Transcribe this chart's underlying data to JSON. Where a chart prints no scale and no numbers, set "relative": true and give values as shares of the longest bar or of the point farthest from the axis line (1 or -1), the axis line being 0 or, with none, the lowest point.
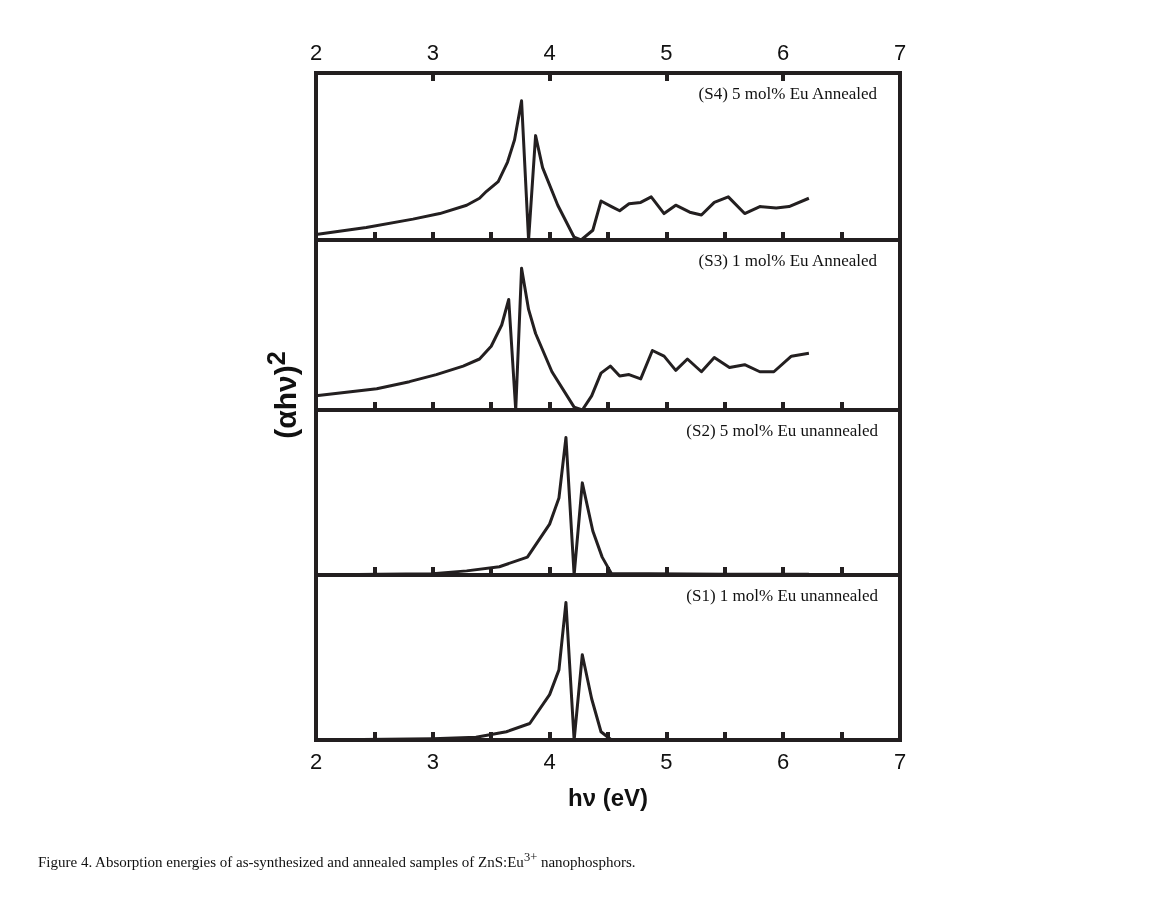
{
  "chart_data": [
    {
      "type": "line",
      "relative": true,
      "xlim": [
        2,
        7
      ],
      "xticks": [
        2,
        {
          "value": 2.5,
          "label": null
        },
        3,
        {
          "value": 3.5,
          "label": null
        },
        4,
        {
          "value": 4.5,
          "label": null
        },
        5,
        {
          "value": 5.5,
          "label": null
        },
        6,
        {
          "value": 6.5,
          "label": null
        },
        7
      ],
      "x2lim": [
        2,
        7
      ],
      "x2ticks": [
        2,
        3,
        4,
        5,
        6,
        7
      ],
      "tick_labels": false,
      "marker": "none",
      "line_style": "solid",
      "legend": false,
      "series": [
        {
          "name": "(S4) 5 mol% Eu Annealed",
          "color": "#231f20",
          "x": [
            2.0,
            2.43,
            2.83,
            3.06,
            3.29,
            3.4,
            3.46,
            3.56,
            3.64,
            3.7,
            3.76,
            3.82,
            3.88,
            3.94,
            4.07,
            4.21,
            4.27,
            4.37,
            4.44,
            4.53,
            4.6,
            4.68,
            4.78,
            4.87,
            4.98,
            5.08,
            5.2,
            5.3,
            5.41,
            5.53,
            5.67,
            5.8,
            5.94,
            6.05,
            6.22
          ],
          "values": [
            0.04,
            0.09,
            0.15,
            0.19,
            0.25,
            0.3,
            0.35,
            0.42,
            0.56,
            0.72,
            1.0,
            0,
            0.75,
            0.52,
            0.25,
            0.02,
            0,
            0.07,
            0.28,
            0.24,
            0.21,
            0.26,
            0.27,
            0.31,
            0.19,
            0.25,
            0.2,
            0.18,
            0.27,
            0.31,
            0.19,
            0.24,
            0.23,
            0.24,
            0.3
          ]
        }
      ]
    },
    {
      "type": "line",
      "relative": true,
      "xlim": [
        2,
        7
      ],
      "xticks": [
        2,
        {
          "value": 2.5,
          "label": null
        },
        3,
        {
          "value": 3.5,
          "label": null
        },
        4,
        {
          "value": 4.5,
          "label": null
        },
        5,
        {
          "value": 5.5,
          "label": null
        },
        6,
        {
          "value": 6.5,
          "label": null
        },
        7
      ],
      "tick_labels": false,
      "marker": "none",
      "line_style": "solid",
      "legend": false,
      "ylabel": "(αhν)$^{2}$",
      "series": [
        {
          "name": "(S3) 1 mol% Eu Annealed",
          "color": "#231f20",
          "x": [
            2.0,
            2.52,
            2.8,
            3.03,
            3.26,
            3.4,
            3.5,
            3.59,
            3.65,
            3.71,
            3.76,
            3.82,
            3.88,
            4.02,
            4.21,
            4.28,
            4.36,
            4.44,
            4.52,
            4.6,
            4.68,
            4.78,
            4.88,
            4.98,
            5.08,
            5.18,
            5.3,
            5.41,
            5.54,
            5.67,
            5.8,
            5.92,
            6.07,
            6.22
          ],
          "values": [
            0.1,
            0.15,
            0.2,
            0.25,
            0.31,
            0.36,
            0.45,
            0.6,
            0.78,
            0,
            1.0,
            0.71,
            0.54,
            0.27,
            0.02,
            0,
            0.1,
            0.26,
            0.31,
            0.24,
            0.25,
            0.22,
            0.42,
            0.38,
            0.28,
            0.36,
            0.27,
            0.37,
            0.3,
            0.32,
            0.27,
            0.27,
            0.38,
            0.4
          ]
        }
      ]
    },
    {
      "type": "line",
      "relative": true,
      "xlim": [
        2,
        7
      ],
      "xticks": [
        2,
        {
          "value": 2.5,
          "label": null
        },
        3,
        {
          "value": 3.5,
          "label": null
        },
        4,
        {
          "value": 4.5,
          "label": null
        },
        5,
        {
          "value": 5.5,
          "label": null
        },
        6,
        {
          "value": 6.5,
          "label": null
        },
        7
      ],
      "tick_labels": false,
      "marker": "none",
      "line_style": "solid",
      "legend": false,
      "series": [
        {
          "name": "(S2) 5 mol% Eu unannealed",
          "color": "#231f20",
          "x": [
            2.0,
            2.54,
            3.0,
            3.29,
            3.57,
            3.81,
            4.0,
            4.08,
            4.14,
            4.21,
            4.28,
            4.37,
            4.45,
            4.53,
            4.85,
            5.5,
            6.22
          ],
          "values": [
            0,
            0.005,
            0.01,
            0.03,
            0.06,
            0.13,
            0.37,
            0.56,
            1.0,
            0,
            0.67,
            0.32,
            0.13,
            0.01,
            0.01,
            0.005,
            0.005
          ]
        }
      ]
    },
    {
      "type": "line",
      "relative": true,
      "xlim": [
        2,
        7
      ],
      "xticks": [
        2,
        {
          "value": 2.5,
          "label": null
        },
        3,
        {
          "value": 3.5,
          "label": null
        },
        4,
        {
          "value": 4.5,
          "label": null
        },
        5,
        {
          "value": 5.5,
          "label": null
        },
        6,
        {
          "value": 6.5,
          "label": null
        },
        7
      ],
      "tick_labels": "x",
      "marker": "none",
      "line_style": "solid",
      "legend": false,
      "xlabel": "hν (eV)",
      "annotations": [
        "Figure 4. Absorption energies of as-synthesized and annealed samples of ZnS:Eu$^{3+}$ nanophosphors."
      ],
      "series": [
        {
          "name": "(S1) 1 mol% Eu unannealed",
          "color": "#231f20",
          "x": [
            2.0,
            3.0,
            3.37,
            3.63,
            3.83,
            4.0,
            4.08,
            4.14,
            4.21,
            4.28,
            4.36,
            4.44,
            4.53,
            4.6
          ],
          "values": [
            0,
            0.01,
            0.02,
            0.06,
            0.12,
            0.33,
            0.51,
            1.0,
            0,
            0.62,
            0.3,
            0.06,
            0,
            0
          ]
        }
      ]
    }
  ]
}
